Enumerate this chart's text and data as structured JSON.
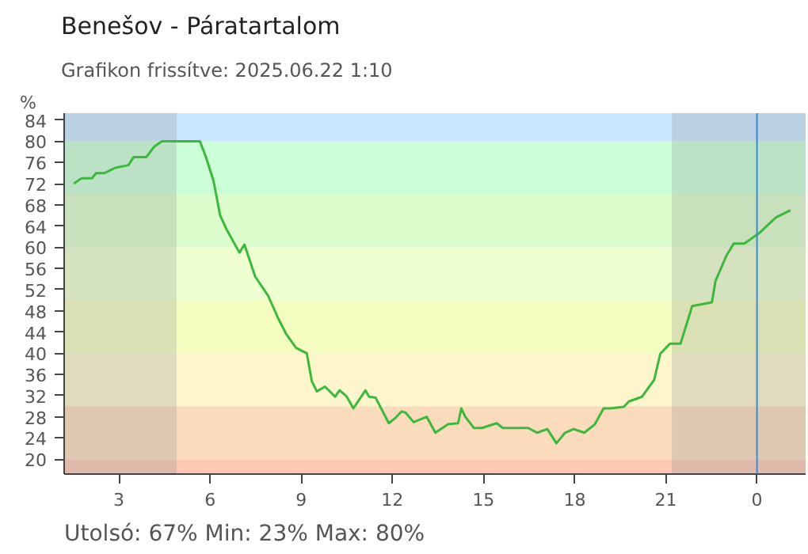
{
  "chart_data": {
    "type": "line",
    "title": "Benešov - Páratartalom",
    "subtitle": "Grafikon frissítve: 2025.06.22 1:10",
    "ylabel": "%",
    "annotations": [
      "Utolsó: 67%  Min: 23%  Max: 80%"
    ],
    "x": [
      "2025-06-21T01:31",
      "2025-06-21T01:46",
      "2025-06-21T02:07",
      "2025-06-21T02:15",
      "2025-06-21T02:32",
      "2025-06-21T02:53",
      "2025-06-21T03:19",
      "2025-06-21T03:29",
      "2025-06-21T03:54",
      "2025-06-21T04:10",
      "2025-06-21T04:25",
      "2025-06-21T05:40",
      "2025-06-21T05:52",
      "2025-06-21T06:07",
      "2025-06-21T06:20",
      "2025-06-21T06:32",
      "2025-06-21T06:58",
      "2025-06-21T07:08",
      "2025-06-21T07:29",
      "2025-06-21T07:55",
      "2025-06-21T08:15",
      "2025-06-21T08:30",
      "2025-06-21T08:50",
      "2025-06-21T09:11",
      "2025-06-21T09:21",
      "2025-06-21T09:31",
      "2025-06-21T09:47",
      "2025-06-21T10:07",
      "2025-06-21T10:16",
      "2025-06-21T10:30",
      "2025-06-21T10:43",
      "2025-06-21T11:07",
      "2025-06-21T11:14",
      "2025-06-21T11:27",
      "2025-06-21T11:53",
      "2025-06-21T12:05",
      "2025-06-21T12:18",
      "2025-06-21T12:26",
      "2025-06-21T12:42",
      "2025-06-21T13:08",
      "2025-06-21T13:25",
      "2025-06-21T13:50",
      "2025-06-21T14:10",
      "2025-06-21T14:16",
      "2025-06-21T14:24",
      "2025-06-21T14:41",
      "2025-06-21T14:57",
      "2025-06-21T15:26",
      "2025-06-21T15:38",
      "2025-06-21T16:28",
      "2025-06-21T16:46",
      "2025-06-21T17:06",
      "2025-06-21T17:24",
      "2025-06-21T17:41",
      "2025-06-21T17:58",
      "2025-06-21T18:19",
      "2025-06-21T18:40",
      "2025-06-21T18:57",
      "2025-06-21T19:11",
      "2025-06-21T19:37",
      "2025-06-21T19:47",
      "2025-06-21T20:13",
      "2025-06-21T20:37",
      "2025-06-21T20:49",
      "2025-06-21T21:08",
      "2025-06-21T21:29",
      "2025-06-21T21:52",
      "2025-06-21T22:31",
      "2025-06-21T22:38",
      "2025-06-21T22:59",
      "2025-06-21T23:14",
      "2025-06-21T23:35",
      "2025-06-22T00:06",
      "2025-06-22T00:37",
      "2025-06-22T01:06"
    ],
    "series": [
      {
        "color": "#3cb83c",
        "values": [
          72,
          73,
          73,
          74,
          74,
          75,
          75.5,
          77,
          77,
          79,
          80,
          80,
          77,
          72.5,
          66,
          63.5,
          59,
          60.5,
          54.5,
          50.8,
          46.5,
          43.7,
          41,
          40,
          34.7,
          32.8,
          33.7,
          31.8,
          33,
          31.8,
          29.6,
          33,
          31.8,
          31.6,
          26.8,
          27.7,
          29,
          28.8,
          27,
          28,
          25,
          26.6,
          26.8,
          29.6,
          28,
          25.9,
          25.9,
          26.8,
          25.9,
          25.9,
          25,
          25.7,
          23,
          25,
          25.7,
          25,
          26.6,
          29.6,
          29.6,
          29.9,
          30.9,
          31.8,
          35,
          39.9,
          41.8,
          41.8,
          48.9,
          49.6,
          53.6,
          58.3,
          60.7,
          60.7,
          62.8,
          65.6,
          67
        ]
      }
    ],
    "xlim": [
      "2025-06-21T01:12",
      "2025-06-22T01:36"
    ],
    "xticks": [
      {
        "value": "2025-06-21T03:00",
        "label": "3"
      },
      {
        "value": "2025-06-21T06:00",
        "label": "6"
      },
      {
        "value": "2025-06-21T09:00",
        "label": "9"
      },
      {
        "value": "2025-06-21T12:00",
        "label": "12"
      },
      {
        "value": "2025-06-21T15:00",
        "label": "15"
      },
      {
        "value": "2025-06-21T18:00",
        "label": "18"
      },
      {
        "value": "2025-06-21T21:00",
        "label": "21"
      },
      {
        "value": "2025-06-22T00:00",
        "label": "0"
      }
    ],
    "ylim": [
      17.2,
      85.3
    ],
    "yticks": [
      20,
      24,
      28,
      32,
      36,
      40,
      44,
      48,
      52,
      56,
      60,
      64,
      68,
      72,
      76,
      80,
      84
    ],
    "bands": [
      {
        "axis": "y",
        "from": 17.2,
        "to": 20,
        "color": "#fcc8b4"
      },
      {
        "axis": "y",
        "from": 20,
        "to": 30,
        "color": "#fadcbc"
      },
      {
        "axis": "y",
        "from": 30,
        "to": 40,
        "color": "#fdf6cc"
      },
      {
        "axis": "y",
        "from": 40,
        "to": 50,
        "color": "#f5fcc0"
      },
      {
        "axis": "y",
        "from": 50,
        "to": 60,
        "color": "#eeffd0"
      },
      {
        "axis": "y",
        "from": 60,
        "to": 70,
        "color": "#dcfccc"
      },
      {
        "axis": "y",
        "from": 70,
        "to": 80,
        "color": "#ccffd8"
      },
      {
        "axis": "y",
        "from": 80,
        "to": 85.3,
        "color": "#c8e8ff"
      },
      {
        "axis": "x",
        "from": "2025-06-21T01:12",
        "to": "2025-06-21T04:54",
        "color": "#8c8c8c"
      },
      {
        "axis": "x",
        "from": "2025-06-21T21:12",
        "to": "2025-06-22T01:36",
        "color": "#8c8c8c"
      }
    ],
    "ref_lines": [
      {
        "axis": "x",
        "value": "2025-06-22T00:00",
        "color": "#3a8ad0",
        "line_style": "solid"
      }
    ],
    "grid": false,
    "line_style": "solid",
    "marker": "none"
  }
}
